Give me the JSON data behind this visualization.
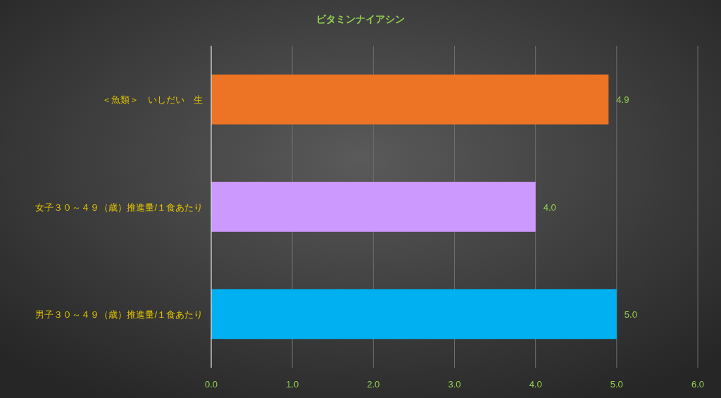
{
  "chart_data": {
    "type": "bar",
    "orientation": "horizontal",
    "title": "ビタミンナイアシン",
    "categories": [
      "＜魚類＞　いしだい　生",
      "女子３０～４９（歳）推進量/１食あたり",
      "男子３０～４９（歳）推進量/１食あたり"
    ],
    "values": [
      4.9,
      4.0,
      5.0
    ],
    "colors": [
      "#ec7424",
      "#cc99ff",
      "#00b0f0"
    ],
    "value_labels": [
      "4.9",
      "4.0",
      "5.0"
    ],
    "xlim": [
      0,
      6
    ],
    "xticks": [
      {
        "value": 0,
        "label": "0.0"
      },
      {
        "value": 1,
        "label": "1.0"
      },
      {
        "value": 2,
        "label": "2.0"
      },
      {
        "value": 3,
        "label": "3.0"
      },
      {
        "value": 4,
        "label": "4.0"
      },
      {
        "value": 5,
        "label": "5.0"
      },
      {
        "value": 6,
        "label": "6.0"
      }
    ],
    "grid": "x"
  }
}
